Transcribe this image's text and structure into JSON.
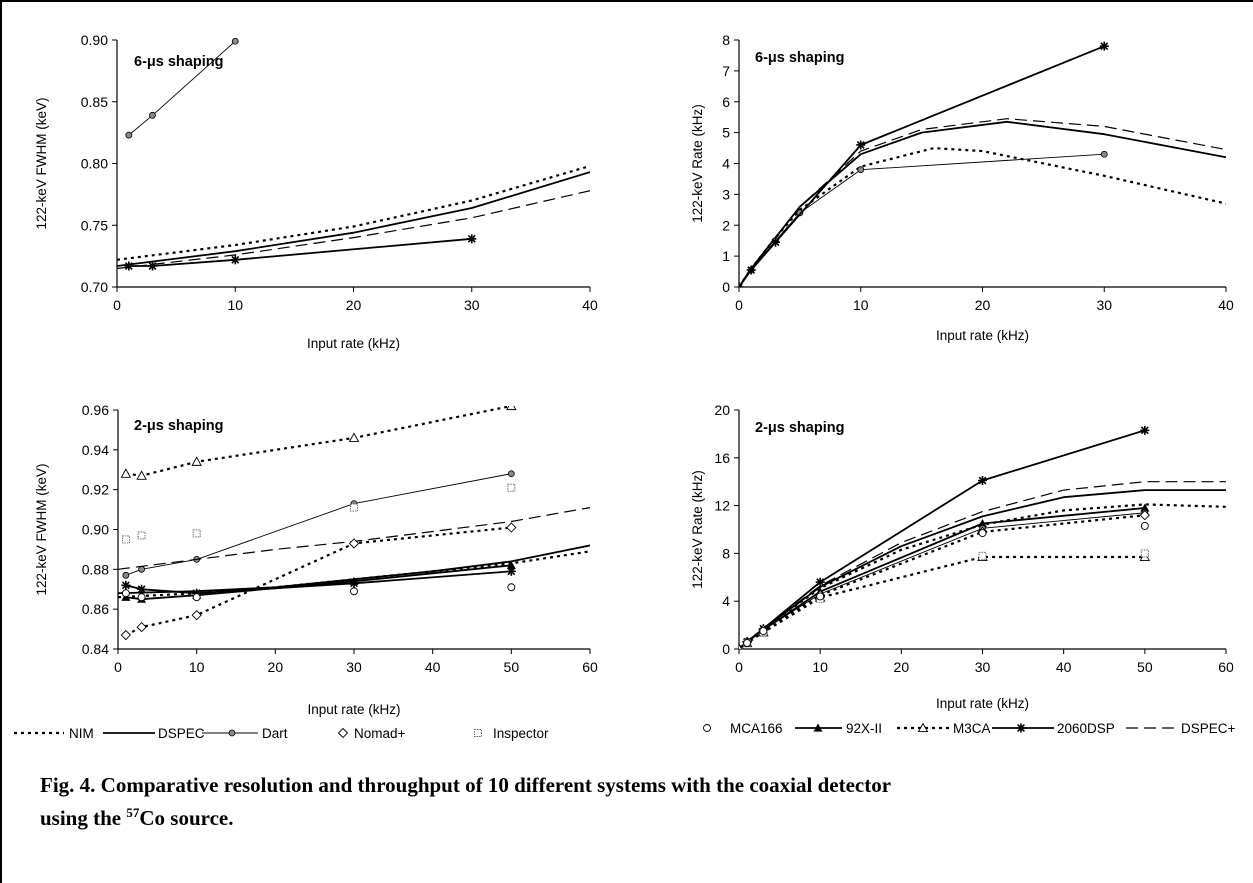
{
  "legend_left": [
    {
      "label": "NIM",
      "style": "dotted",
      "marker": "none"
    },
    {
      "label": "DSPEC",
      "style": "solid",
      "marker": "none"
    },
    {
      "label": "Dart",
      "style": "thin-solid",
      "marker": "dot"
    },
    {
      "label": "Nomad+",
      "style": "none",
      "marker": "diamond"
    },
    {
      "label": "Inspector",
      "style": "none",
      "marker": "square"
    }
  ],
  "legend_right": [
    {
      "label": "MCA166",
      "style": "none",
      "marker": "circle"
    },
    {
      "label": "92X-II",
      "style": "solid",
      "marker": "triangle-filled"
    },
    {
      "label": "M3CA",
      "style": "dotted",
      "marker": "triangle-open"
    },
    {
      "label": "2060DSP",
      "style": "solid",
      "marker": "star"
    },
    {
      "label": "DSPEC+",
      "style": "dashed",
      "marker": "none"
    }
  ],
  "caption": {
    "part1": "Fig. 4.  Comparative resolution and throughput of 10 different systems with the coaxial detector",
    "part2": "using the ",
    "sup": "57",
    "part3": "Co source."
  },
  "chart_data": [
    {
      "type": "line",
      "title": "6-μs shaping",
      "xlabel": "Input rate (kHz)",
      "ylabel": "122-keV FWHM (keV)",
      "xlim": [
        0,
        40
      ],
      "ylim": [
        0.7,
        0.9
      ],
      "xticks": [
        0,
        10,
        20,
        30,
        40
      ],
      "yticks": [
        0.7,
        0.75,
        0.8,
        0.85,
        0.9
      ],
      "yfmt": 2,
      "series": [
        {
          "name": "NIM",
          "style": "dotted",
          "marker": "none",
          "x": [
            0,
            10,
            20,
            30,
            40
          ],
          "y": [
            0.722,
            0.734,
            0.749,
            0.77,
            0.798
          ]
        },
        {
          "name": "DSPEC",
          "style": "solid",
          "marker": "none",
          "x": [
            0,
            10,
            20,
            30,
            40
          ],
          "y": [
            0.717,
            0.729,
            0.744,
            0.764,
            0.793
          ]
        },
        {
          "name": "DSPEC+",
          "style": "dashed",
          "marker": "none",
          "x": [
            0,
            10,
            20,
            30,
            40
          ],
          "y": [
            0.715,
            0.726,
            0.74,
            0.756,
            0.778
          ]
        },
        {
          "name": "Dart",
          "style": "thin-solid",
          "marker": "dot",
          "x": [
            1,
            3,
            10
          ],
          "y": [
            0.823,
            0.839,
            0.899
          ]
        },
        {
          "name": "2060DSP",
          "style": "solid",
          "marker": "star",
          "x": [
            1,
            3,
            10,
            30
          ],
          "y": [
            0.717,
            0.717,
            0.722,
            0.739
          ]
        }
      ]
    },
    {
      "type": "line",
      "title": "6-μs shaping",
      "xlabel": "Input rate (kHz)",
      "ylabel": "122-keV Rate (kHz)",
      "xlim": [
        0,
        40
      ],
      "ylim": [
        0,
        8
      ],
      "xticks": [
        0,
        10,
        20,
        30,
        40
      ],
      "yticks": [
        0,
        1,
        2,
        3,
        4,
        5,
        6,
        7,
        8
      ],
      "yfmt": 0,
      "series": [
        {
          "name": "NIM",
          "style": "dotted",
          "marker": "none",
          "x": [
            0,
            1,
            3,
            5,
            10,
            16,
            20,
            30,
            40
          ],
          "y": [
            0,
            0.6,
            1.6,
            2.5,
            3.9,
            4.5,
            4.4,
            3.6,
            2.7
          ]
        },
        {
          "name": "DSPEC",
          "style": "solid",
          "marker": "none",
          "x": [
            0,
            1,
            3,
            5,
            10,
            15,
            22,
            30,
            40
          ],
          "y": [
            0,
            0.6,
            1.6,
            2.6,
            4.3,
            5.0,
            5.35,
            4.95,
            4.2
          ]
        },
        {
          "name": "DSPEC+",
          "style": "dashed",
          "marker": "none",
          "x": [
            0,
            1,
            3,
            5,
            10,
            15,
            22,
            30,
            40
          ],
          "y": [
            0,
            0.6,
            1.6,
            2.6,
            4.4,
            5.1,
            5.45,
            5.2,
            4.45
          ]
        },
        {
          "name": "Dart",
          "style": "thin-solid",
          "marker": "dot",
          "x": [
            0,
            1,
            3,
            5,
            10,
            30
          ],
          "y": [
            0,
            0.55,
            1.5,
            2.4,
            3.8,
            4.3
          ]
        },
        {
          "name": "2060DSP",
          "style": "solid",
          "marker": "star",
          "x": [
            0,
            1,
            3,
            10,
            30
          ],
          "y": [
            0,
            0.55,
            1.45,
            4.6,
            7.8
          ]
        }
      ]
    },
    {
      "type": "line",
      "title": "2-μs shaping",
      "xlabel": "Input rate (kHz)",
      "ylabel": "122-keV FWHM (keV)",
      "xlim": [
        0,
        60
      ],
      "ylim": [
        0.84,
        0.96
      ],
      "xticks": [
        0,
        10,
        20,
        30,
        40,
        50,
        60
      ],
      "yticks": [
        0.84,
        0.86,
        0.88,
        0.9,
        0.92,
        0.94,
        0.96
      ],
      "yfmt": 2,
      "series": [
        {
          "name": "M3CA",
          "style": "dotted",
          "marker": "triangle-open",
          "x": [
            1,
            3,
            10,
            30,
            50
          ],
          "y": [
            0.928,
            0.927,
            0.934,
            0.946,
            0.962
          ]
        },
        {
          "name": "Dart",
          "style": "thin-solid",
          "marker": "dot",
          "x": [
            1,
            3,
            10,
            30,
            50
          ],
          "y": [
            0.877,
            0.88,
            0.885,
            0.913,
            0.928
          ]
        },
        {
          "name": "Inspector",
          "style": "none",
          "marker": "square",
          "x": [
            1,
            3,
            10,
            30,
            50
          ],
          "y": [
            0.895,
            0.897,
            0.898,
            0.911,
            0.921
          ]
        },
        {
          "name": "DSPEC+",
          "style": "dashed",
          "marker": "none",
          "x": [
            0,
            10,
            20,
            30,
            40,
            50,
            60
          ],
          "y": [
            0.88,
            0.885,
            0.89,
            0.894,
            0.899,
            0.904,
            0.911
          ]
        },
        {
          "name": "Nomad+",
          "style": "dotted",
          "marker": "diamond",
          "x": [
            1,
            3,
            10,
            30,
            50
          ],
          "y": [
            0.847,
            0.851,
            0.857,
            0.893,
            0.901
          ]
        },
        {
          "name": "NIM",
          "style": "dotted",
          "marker": "none",
          "x": [
            0,
            10,
            20,
            30,
            40,
            50,
            60
          ],
          "y": [
            0.866,
            0.868,
            0.871,
            0.875,
            0.879,
            0.883,
            0.889
          ]
        },
        {
          "name": "DSPEC",
          "style": "solid",
          "marker": "none",
          "x": [
            0,
            10,
            20,
            30,
            40,
            50,
            60
          ],
          "y": [
            0.868,
            0.869,
            0.871,
            0.875,
            0.879,
            0.884,
            0.892
          ]
        },
        {
          "name": "92X-II",
          "style": "solid",
          "marker": "triangle-filled",
          "x": [
            1,
            3,
            10,
            30,
            50
          ],
          "y": [
            0.866,
            0.865,
            0.867,
            0.874,
            0.882
          ]
        },
        {
          "name": "2060DSP",
          "style": "solid",
          "marker": "star",
          "x": [
            1,
            3,
            10,
            30,
            50
          ],
          "y": [
            0.872,
            0.87,
            0.868,
            0.873,
            0.879
          ]
        },
        {
          "name": "MCA166",
          "style": "none",
          "marker": "circle",
          "x": [
            1,
            3,
            10,
            30,
            50
          ],
          "y": [
            0.868,
            0.866,
            0.866,
            0.869,
            0.871
          ]
        }
      ]
    },
    {
      "type": "line",
      "title": "2-μs shaping",
      "xlabel": "Input rate (kHz)",
      "ylabel": "122-keV Rate (kHz)",
      "xlim": [
        0,
        60
      ],
      "ylim": [
        0,
        20
      ],
      "xticks": [
        0,
        10,
        20,
        30,
        40,
        50,
        60
      ],
      "yticks": [
        0,
        4,
        8,
        12,
        16,
        20
      ],
      "yfmt": 0,
      "series": [
        {
          "name": "2060DSP",
          "style": "solid",
          "marker": "star",
          "x": [
            0,
            1,
            3,
            10,
            30,
            50
          ],
          "y": [
            0,
            0.6,
            1.7,
            5.6,
            14.1,
            18.3
          ]
        },
        {
          "name": "DSPEC+",
          "style": "dashed",
          "marker": "none",
          "x": [
            0,
            1,
            3,
            10,
            20,
            30,
            40,
            50,
            60
          ],
          "y": [
            0,
            0.6,
            1.7,
            5.3,
            8.9,
            11.5,
            13.3,
            14.0,
            14.0
          ]
        },
        {
          "name": "DSPEC",
          "style": "solid",
          "marker": "none",
          "x": [
            0,
            1,
            3,
            10,
            20,
            30,
            40,
            50,
            60
          ],
          "y": [
            0,
            0.6,
            1.7,
            5.2,
            8.6,
            11.1,
            12.7,
            13.3,
            13.3
          ]
        },
        {
          "name": "NIM",
          "style": "dotted",
          "marker": "none",
          "x": [
            0,
            1,
            3,
            10,
            20,
            30,
            40,
            50,
            60
          ],
          "y": [
            0,
            0.6,
            1.7,
            5.1,
            8.3,
            10.4,
            11.6,
            12.1,
            11.9
          ]
        },
        {
          "name": "92X-II",
          "style": "solid",
          "marker": "triangle-filled",
          "x": [
            0,
            1,
            3,
            10,
            30,
            50
          ],
          "y": [
            0,
            0.6,
            1.6,
            4.8,
            10.5,
            11.8
          ]
        },
        {
          "name": "Dart",
          "style": "thin-solid",
          "marker": "dot",
          "x": [
            0,
            1,
            3,
            10,
            30,
            50
          ],
          "y": [
            0,
            0.6,
            1.6,
            4.6,
            10.1,
            11.4
          ]
        },
        {
          "name": "Nomad+",
          "style": "dotted",
          "marker": "diamond",
          "x": [
            0,
            1,
            3,
            10,
            30,
            50
          ],
          "y": [
            0,
            0.6,
            1.6,
            4.5,
            9.8,
            11.2
          ]
        },
        {
          "name": "M3CA",
          "style": "dotted",
          "marker": "triangle-open",
          "x": [
            0,
            1,
            3,
            10,
            30,
            50
          ],
          "y": [
            0,
            0.5,
            1.4,
            4.3,
            7.7,
            7.7
          ]
        },
        {
          "name": "Inspector",
          "style": "none",
          "marker": "square",
          "x": [
            1,
            3,
            10,
            30,
            50
          ],
          "y": [
            0.5,
            1.4,
            4.2,
            7.8,
            8.0
          ]
        },
        {
          "name": "MCA166",
          "style": "none",
          "marker": "circle",
          "x": [
            1,
            3,
            10,
            30,
            50
          ],
          "y": [
            0.5,
            1.5,
            4.4,
            9.7,
            10.3
          ]
        }
      ]
    }
  ]
}
